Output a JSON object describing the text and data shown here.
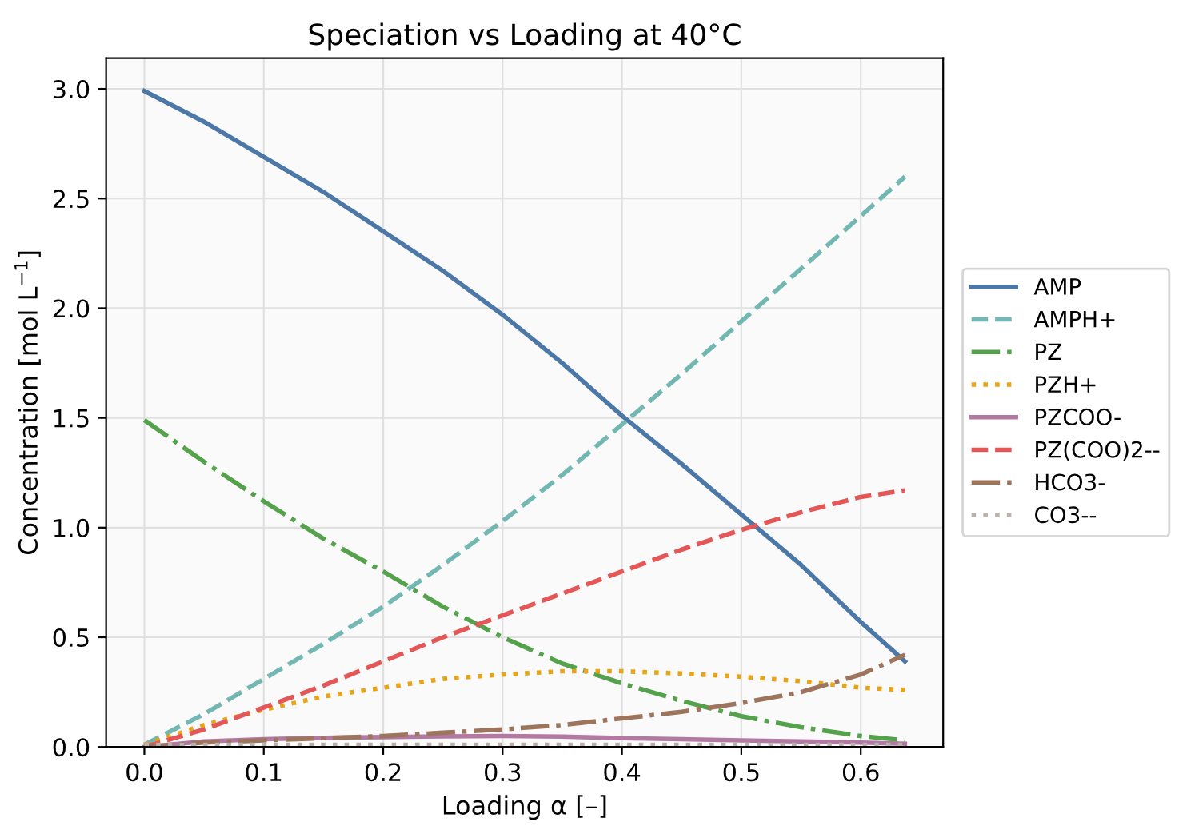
{
  "chart_data": {
    "type": "line",
    "title": "Speciation vs Loading at 40°C",
    "xlabel": "Loading α [–]",
    "ylabel": "Concentration [mol L$^{−1}$]",
    "x": [
      0,
      0.05,
      0.1,
      0.15,
      0.2,
      0.25,
      0.3,
      0.35,
      0.4,
      0.45,
      0.5,
      0.55,
      0.6,
      0.637
    ],
    "series": [
      {
        "name": "AMP",
        "color": "#4c78a8",
        "line_style": "solid",
        "values": [
          2.99,
          2.85,
          2.69,
          2.53,
          2.35,
          2.17,
          1.97,
          1.75,
          1.51,
          1.29,
          1.06,
          0.83,
          0.57,
          0.39
        ]
      },
      {
        "name": "AMPH+",
        "color": "#72b7b2",
        "line_style": "dashed",
        "values": [
          0.01,
          0.15,
          0.31,
          0.47,
          0.64,
          0.83,
          1.03,
          1.24,
          1.47,
          1.7,
          1.94,
          2.18,
          2.42,
          2.6
        ]
      },
      {
        "name": "PZ",
        "color": "#54a24b",
        "line_style": "dashdot",
        "values": [
          1.49,
          1.3,
          1.12,
          0.95,
          0.8,
          0.64,
          0.5,
          0.38,
          0.29,
          0.21,
          0.14,
          0.09,
          0.05,
          0.03
        ]
      },
      {
        "name": "PZH+",
        "color": "#e8a317",
        "line_style": "dotted",
        "values": [
          0.01,
          0.1,
          0.17,
          0.23,
          0.27,
          0.31,
          0.33,
          0.345,
          0.345,
          0.335,
          0.32,
          0.3,
          0.27,
          0.26
        ]
      },
      {
        "name": "PZCOO-",
        "color": "#b279a2",
        "line_style": "solid",
        "values": [
          0,
          0.025,
          0.035,
          0.042,
          0.045,
          0.048,
          0.05,
          0.047,
          0.04,
          0.035,
          0.03,
          0.025,
          0.02,
          0.015
        ]
      },
      {
        "name": "PZ(COO)2--",
        "color": "#e45756",
        "line_style": "dashed",
        "values": [
          0,
          0.08,
          0.18,
          0.28,
          0.39,
          0.5,
          0.6,
          0.7,
          0.8,
          0.9,
          0.99,
          1.07,
          1.14,
          1.17
        ]
      },
      {
        "name": "HCO3-",
        "color": "#9d755d",
        "line_style": "dashdot",
        "values": [
          0,
          0.02,
          0.03,
          0.04,
          0.05,
          0.065,
          0.08,
          0.1,
          0.13,
          0.16,
          0.2,
          0.25,
          0.33,
          0.42
        ]
      },
      {
        "name": "CO3--",
        "color": "#bab0ac",
        "line_style": "dotted",
        "values": [
          0.01,
          0.01,
          0.01,
          0.01,
          0.01,
          0.01,
          0.01,
          0.01,
          0.01,
          0.01,
          0.01,
          0.01,
          0.01,
          0.01
        ]
      }
    ],
    "xlim": [
      -0.032,
      0.669
    ],
    "ylim": [
      0,
      3.14
    ],
    "xticks": [
      {
        "value": 0,
        "label": "0.0"
      },
      0.1,
      0.2,
      0.3,
      0.4,
      0.5,
      0.6
    ],
    "yticks": [
      {
        "value": 0,
        "label": "0.0"
      },
      0.5,
      {
        "value": 1,
        "label": "1.0"
      },
      1.5,
      {
        "value": 2,
        "label": "2.0"
      },
      2.5,
      {
        "value": 3,
        "label": "3.0"
      }
    ],
    "grid": true,
    "legend": "right",
    "marker": "none"
  }
}
